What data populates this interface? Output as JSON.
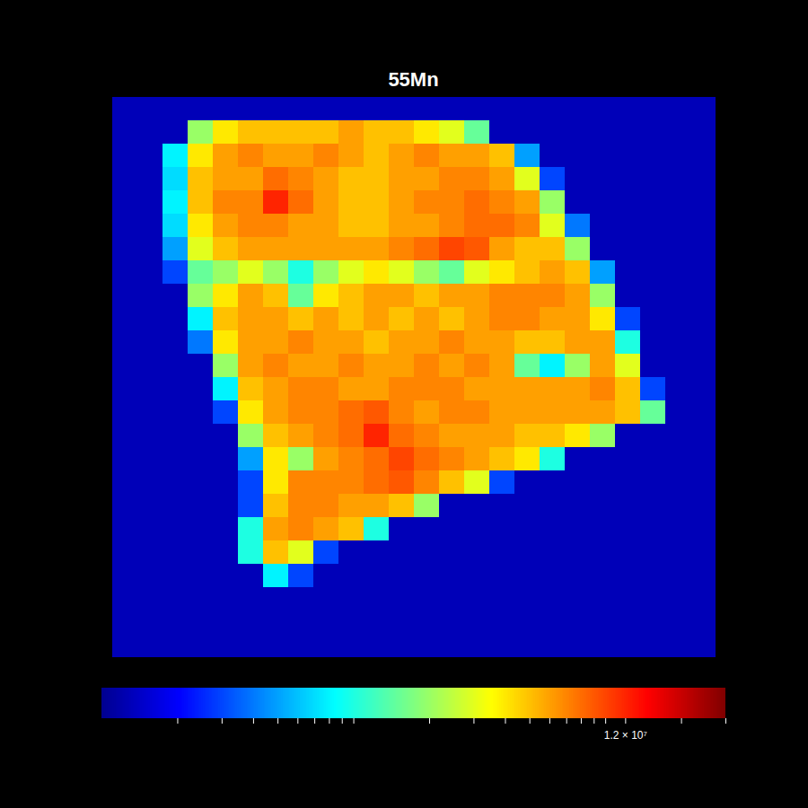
{
  "chart_data": {
    "type": "heatmap",
    "title": "55Mn",
    "tick_labels": false,
    "log": true,
    "colorbar_range": [
      100000.0,
      30000000.0
    ],
    "colorbar_ticks": [
      {
        "value": 12000000,
        "label": "1.2 × 10⁷"
      }
    ],
    "colorbar_minor_ticks": [
      200000.0,
      300000.0,
      400000.0,
      500000.0,
      600000.0,
      700000.0,
      800000.0,
      900000.0,
      1000000.0,
      2000000.0,
      3000000.0,
      4000000.0,
      5000000.0,
      6000000.0,
      7000000.0,
      8000000.0,
      9000000.0,
      10000000.0,
      20000000.0,
      30000000.0
    ],
    "cells": [
      [
        130000.0,
        130000.0,
        130000.0,
        130000.0,
        130000.0,
        130000.0,
        130000.0,
        130000.0,
        130000.0,
        130000.0,
        130000.0,
        130000.0,
        130000.0,
        130000.0,
        130000.0,
        130000.0,
        130000.0,
        130000.0,
        130000.0,
        130000.0,
        130000.0,
        130000.0,
        130000.0,
        130000.0
      ],
      [
        130000.0,
        130000.0,
        130000.0,
        2000000.0,
        4000000.0,
        5000000.0,
        5000000.0,
        5000000.0,
        5000000.0,
        6000000.0,
        5000000.0,
        5000000.0,
        4000000.0,
        3000000.0,
        1500000.0,
        130000.0,
        130000.0,
        130000.0,
        130000.0,
        130000.0,
        130000.0,
        130000.0,
        130000.0,
        130000.0
      ],
      [
        130000.0,
        130000.0,
        800000.0,
        4000000.0,
        6000000.0,
        7000000.0,
        6000000.0,
        6000000.0,
        7000000.0,
        6000000.0,
        5000000.0,
        6000000.0,
        7000000.0,
        6000000.0,
        6000000.0,
        5000000.0,
        500000.0,
        130000.0,
        130000.0,
        130000.0,
        130000.0,
        130000.0,
        130000.0,
        130000.0
      ],
      [
        130000.0,
        130000.0,
        700000.0,
        5000000.0,
        6000000.0,
        6000000.0,
        8000000.0,
        7000000.0,
        6000000.0,
        5000000.0,
        5000000.0,
        6000000.0,
        6000000.0,
        7000000.0,
        7000000.0,
        6000000.0,
        3000000.0,
        300000.0,
        130000.0,
        130000.0,
        130000.0,
        130000.0,
        130000.0,
        130000.0
      ],
      [
        130000.0,
        130000.0,
        800000.0,
        5000000.0,
        7000000.0,
        7000000.0,
        12000000.0,
        8000000.0,
        6000000.0,
        5000000.0,
        5000000.0,
        6000000.0,
        7000000.0,
        7000000.0,
        8000000.0,
        7000000.0,
        6000000.0,
        2000000.0,
        130000.0,
        130000.0,
        130000.0,
        130000.0,
        130000.0,
        130000.0
      ],
      [
        130000.0,
        130000.0,
        700000.0,
        4000000.0,
        6000000.0,
        7000000.0,
        7000000.0,
        6000000.0,
        6000000.0,
        5000000.0,
        5000000.0,
        6000000.0,
        6000000.0,
        7000000.0,
        8000000.0,
        8000000.0,
        7000000.0,
        3000000.0,
        400000.0,
        130000.0,
        130000.0,
        130000.0,
        130000.0,
        130000.0
      ],
      [
        130000.0,
        130000.0,
        500000.0,
        3000000.0,
        5000000.0,
        6000000.0,
        6000000.0,
        6000000.0,
        6000000.0,
        6000000.0,
        6000000.0,
        7000000.0,
        8000000.0,
        10000000.0,
        9000000.0,
        6000000.0,
        5000000.0,
        5000000.0,
        2000000.0,
        130000.0,
        130000.0,
        130000.0,
        130000.0,
        130000.0
      ],
      [
        130000.0,
        130000.0,
        300000.0,
        1500000.0,
        2000000.0,
        3000000.0,
        2000000.0,
        1000000.0,
        2000000.0,
        3000000.0,
        4000000.0,
        3000000.0,
        2000000.0,
        1500000.0,
        3000000.0,
        4000000.0,
        5000000.0,
        6000000.0,
        5000000.0,
        500000.0,
        130000.0,
        130000.0,
        130000.0,
        130000.0
      ],
      [
        130000.0,
        130000.0,
        130000.0,
        2000000.0,
        4000000.0,
        6000000.0,
        5000000.0,
        1500000.0,
        4000000.0,
        5000000.0,
        6000000.0,
        6000000.0,
        5000000.0,
        6000000.0,
        6000000.0,
        7000000.0,
        7000000.0,
        7000000.0,
        6000000.0,
        2000000.0,
        130000.0,
        130000.0,
        130000.0,
        130000.0
      ],
      [
        130000.0,
        130000.0,
        130000.0,
        800000.0,
        5000000.0,
        6000000.0,
        6000000.0,
        5000000.0,
        6000000.0,
        5000000.0,
        6000000.0,
        5000000.0,
        6000000.0,
        5000000.0,
        6000000.0,
        7000000.0,
        7000000.0,
        6000000.0,
        6000000.0,
        4000000.0,
        300000.0,
        130000.0,
        130000.0,
        130000.0
      ],
      [
        130000.0,
        130000.0,
        130000.0,
        400000.0,
        4000000.0,
        6000000.0,
        6000000.0,
        7000000.0,
        6000000.0,
        6000000.0,
        5000000.0,
        6000000.0,
        6000000.0,
        7000000.0,
        6000000.0,
        6000000.0,
        5000000.0,
        5000000.0,
        6000000.0,
        6000000.0,
        1000000.0,
        130000.0,
        130000.0,
        130000.0
      ],
      [
        130000.0,
        130000.0,
        130000.0,
        130000.0,
        2000000.0,
        6000000.0,
        7000000.0,
        6000000.0,
        6000000.0,
        7000000.0,
        6000000.0,
        6000000.0,
        7000000.0,
        6000000.0,
        7000000.0,
        6000000.0,
        1500000.0,
        800000.0,
        2000000.0,
        6000000.0,
        3000000.0,
        130000.0,
        130000.0,
        130000.0
      ],
      [
        130000.0,
        130000.0,
        130000.0,
        130000.0,
        800000.0,
        5000000.0,
        6000000.0,
        7000000.0,
        7000000.0,
        6000000.0,
        6000000.0,
        7000000.0,
        7000000.0,
        7000000.0,
        6000000.0,
        6000000.0,
        6000000.0,
        6000000.0,
        6000000.0,
        7000000.0,
        5000000.0,
        300000.0,
        130000.0,
        130000.0
      ],
      [
        130000.0,
        130000.0,
        130000.0,
        130000.0,
        300000.0,
        4000000.0,
        6000000.0,
        7000000.0,
        7000000.0,
        8000000.0,
        9000000.0,
        7000000.0,
        6000000.0,
        7000000.0,
        7000000.0,
        6000000.0,
        6000000.0,
        6000000.0,
        6000000.0,
        6000000.0,
        5000000.0,
        1500000.0,
        130000.0,
        130000.0
      ],
      [
        130000.0,
        130000.0,
        130000.0,
        130000.0,
        130000.0,
        2000000.0,
        5000000.0,
        6000000.0,
        7000000.0,
        8000000.0,
        12000000.0,
        8000000.0,
        7000000.0,
        6000000.0,
        6000000.0,
        6000000.0,
        5000000.0,
        5000000.0,
        4000000.0,
        2000000.0,
        130000.0,
        130000.0,
        130000.0,
        130000.0
      ],
      [
        130000.0,
        130000.0,
        130000.0,
        130000.0,
        130000.0,
        500000.0,
        4000000.0,
        2000000.0,
        6000000.0,
        7000000.0,
        8000000.0,
        10000000.0,
        8000000.0,
        7000000.0,
        6000000.0,
        5000000.0,
        4000000.0,
        1000000.0,
        130000.0,
        130000.0,
        130000.0,
        130000.0,
        130000.0,
        130000.0
      ],
      [
        130000.0,
        130000.0,
        130000.0,
        130000.0,
        130000.0,
        300000.0,
        4000000.0,
        7000000.0,
        7000000.0,
        7000000.0,
        8000000.0,
        9000000.0,
        7000000.0,
        5000000.0,
        3000000.0,
        300000.0,
        130000.0,
        130000.0,
        130000.0,
        130000.0,
        130000.0,
        130000.0,
        130000.0,
        130000.0
      ],
      [
        130000.0,
        130000.0,
        130000.0,
        130000.0,
        130000.0,
        300000.0,
        5000000.0,
        7000000.0,
        7000000.0,
        6000000.0,
        6000000.0,
        5000000.0,
        2000000.0,
        130000.0,
        130000.0,
        130000.0,
        130000.0,
        130000.0,
        130000.0,
        130000.0,
        130000.0,
        130000.0,
        130000.0,
        130000.0
      ],
      [
        130000.0,
        130000.0,
        130000.0,
        130000.0,
        130000.0,
        1000000.0,
        6000000.0,
        7000000.0,
        6000000.0,
        5000000.0,
        1000000.0,
        130000.0,
        130000.0,
        130000.0,
        130000.0,
        130000.0,
        130000.0,
        130000.0,
        130000.0,
        130000.0,
        130000.0,
        130000.0,
        130000.0,
        130000.0
      ],
      [
        130000.0,
        130000.0,
        130000.0,
        130000.0,
        130000.0,
        1000000.0,
        5000000.0,
        3000000.0,
        300000.0,
        130000.0,
        130000.0,
        130000.0,
        130000.0,
        130000.0,
        130000.0,
        130000.0,
        130000.0,
        130000.0,
        130000.0,
        130000.0,
        130000.0,
        130000.0,
        130000.0,
        130000.0
      ],
      [
        130000.0,
        130000.0,
        130000.0,
        130000.0,
        130000.0,
        130000.0,
        800000.0,
        300000.0,
        130000.0,
        130000.0,
        130000.0,
        130000.0,
        130000.0,
        130000.0,
        130000.0,
        130000.0,
        130000.0,
        130000.0,
        130000.0,
        130000.0,
        130000.0,
        130000.0,
        130000.0,
        130000.0
      ],
      [
        130000.0,
        130000.0,
        130000.0,
        130000.0,
        130000.0,
        130000.0,
        130000.0,
        130000.0,
        130000.0,
        130000.0,
        130000.0,
        130000.0,
        130000.0,
        130000.0,
        130000.0,
        130000.0,
        130000.0,
        130000.0,
        130000.0,
        130000.0,
        130000.0,
        130000.0,
        130000.0,
        130000.0
      ],
      [
        130000.0,
        130000.0,
        130000.0,
        130000.0,
        130000.0,
        130000.0,
        130000.0,
        130000.0,
        130000.0,
        130000.0,
        130000.0,
        130000.0,
        130000.0,
        130000.0,
        130000.0,
        130000.0,
        130000.0,
        130000.0,
        130000.0,
        130000.0,
        130000.0,
        130000.0,
        130000.0,
        130000.0
      ],
      [
        130000.0,
        130000.0,
        130000.0,
        130000.0,
        130000.0,
        130000.0,
        130000.0,
        130000.0,
        130000.0,
        130000.0,
        130000.0,
        130000.0,
        130000.0,
        130000.0,
        130000.0,
        130000.0,
        130000.0,
        130000.0,
        130000.0,
        130000.0,
        130000.0,
        130000.0,
        130000.0,
        130000.0
      ]
    ]
  }
}
